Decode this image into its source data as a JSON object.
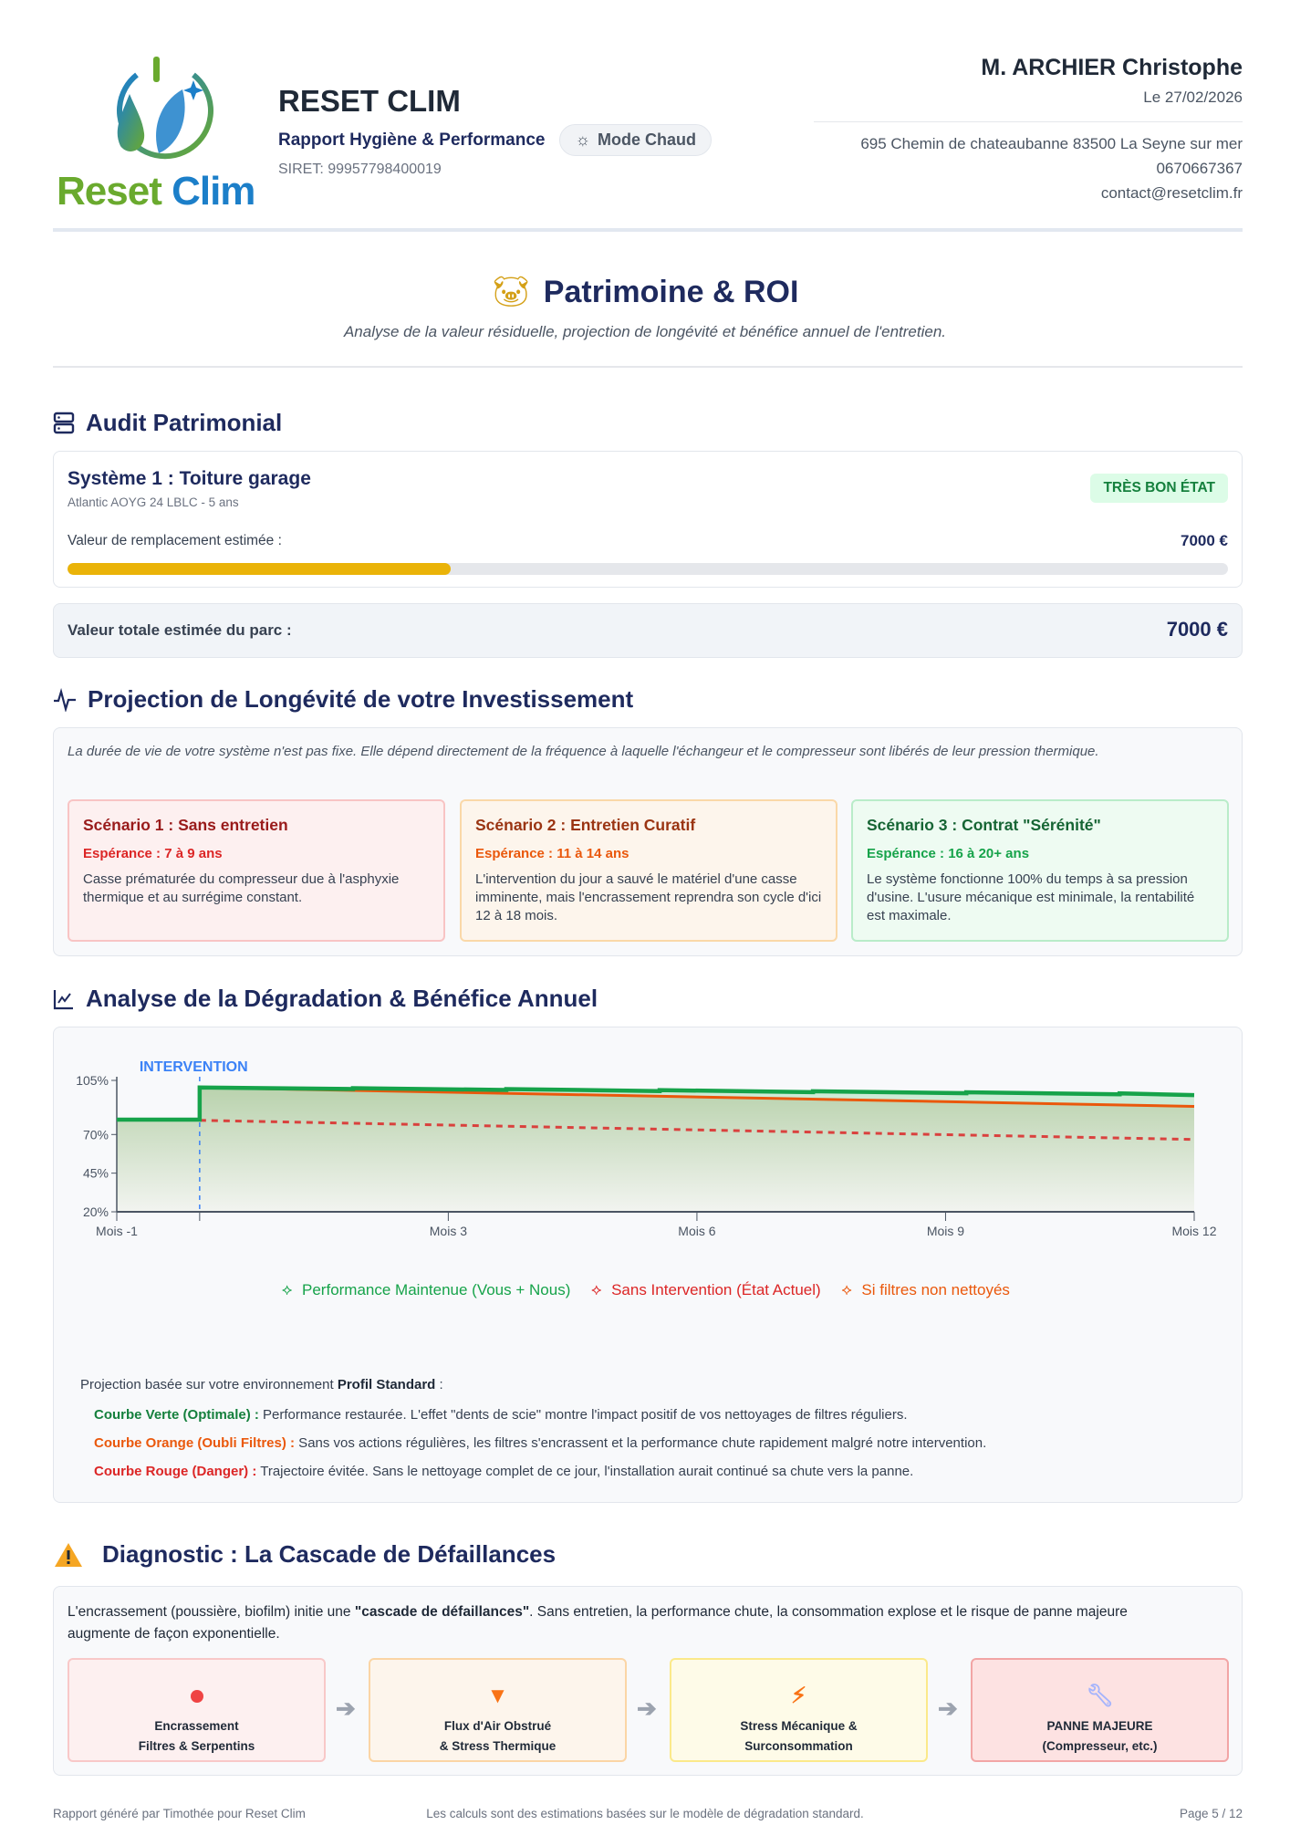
{
  "header": {
    "logo_text_a": "Reset",
    "logo_text_b": "Clim",
    "company": "RESET CLIM",
    "report_type": "Rapport Hygiène & Performance",
    "mode_badge": "Mode Chaud",
    "siret": "SIRET: 99957798400019",
    "client_name": "M. ARCHIER Christophe",
    "date": "Le 27/02/2026",
    "address": "695 Chemin de chateaubanne 83500 La Seyne sur mer",
    "phone": "0670667367",
    "email": "contact@resetclim.fr"
  },
  "page": {
    "title": "Patrimoine & ROI",
    "subtitle": "Analyse de la valeur résiduelle, projection de longévité et bénéfice annuel de l'entretien."
  },
  "audit": {
    "heading": "Audit Patrimonial",
    "system_title": "Système 1 : Toiture garage",
    "system_sub": "Atlantic AOYG 24 LBLC - 5 ans",
    "status_badge": "TRÈS BON ÉTAT",
    "value_label": "Valeur de remplacement estimée :",
    "value": "7000 €",
    "progress_percent": 33,
    "total_label": "Valeur totale estimée du parc :",
    "total_value": "7000 €"
  },
  "projection": {
    "heading": "Projection de Longévité de votre Investissement",
    "intro": "La durée de vie de votre système n'est pas fixe. Elle dépend directement de la fréquence à laquelle l'échangeur et le compresseur sont libérés de leur pression thermique.",
    "scenarios": [
      {
        "title": "Scénario 1 : Sans entretien",
        "expectancy": "Espérance : 7 à 9 ans",
        "desc": "Casse prématurée du compresseur due à l'asphyxie thermique et au surrégime constant."
      },
      {
        "title": "Scénario 2 : Entretien Curatif",
        "expectancy": "Espérance : 11 à 14 ans",
        "desc": "L'intervention du jour a sauvé le matériel d'une casse imminente, mais l'encrassement reprendra son cycle d'ici 12 à 18 mois."
      },
      {
        "title": "Scénario 3 : Contrat \"Sérénité\"",
        "expectancy": "Espérance : 16 à 20+ ans",
        "desc": "Le système fonctionne 100% du temps à sa pression d'usine. L'usure mécanique est minimale, la rentabilité est maximale."
      }
    ]
  },
  "analysis": {
    "heading": "Analyse de la Dégradation & Bénéfice Annuel",
    "notes_intro": "Projection basée sur votre environnement ",
    "notes_profile": "Profil Standard",
    "notes_colon": " :",
    "notes": [
      {
        "label": "Courbe Verte (Optimale) :",
        "text": " Performance restaurée. L'effet \"dents de scie\" montre l'impact positif de vos nettoyages de filtres réguliers."
      },
      {
        "label": "Courbe Orange (Oubli Filtres) :",
        "text": " Sans vos actions régulières, les filtres s'encrassent et la performance chute rapidement malgré notre intervention."
      },
      {
        "label": "Courbe Rouge (Danger) :",
        "text": " Trajectoire évitée. Sans le nettoyage complet de ce jour, l'installation aurait continué sa chute vers la panne."
      }
    ]
  },
  "chart_data": {
    "type": "line",
    "xlabel": "",
    "ylabel": "",
    "xlim": [
      -1,
      12
    ],
    "ylim": [
      20,
      105
    ],
    "x_ticks": [
      {
        "v": -1,
        "label": "Mois -1"
      },
      {
        "v": 0,
        "label": ""
      },
      {
        "v": 3,
        "label": "Mois 3"
      },
      {
        "v": 6,
        "label": "Mois 6"
      },
      {
        "v": 9,
        "label": "Mois 9"
      },
      {
        "v": 12,
        "label": "Mois 12"
      }
    ],
    "y_ticks": [
      {
        "v": 105,
        "label": "105%"
      },
      {
        "v": 70,
        "label": "70%"
      },
      {
        "v": 45,
        "label": "45%"
      },
      {
        "v": 20,
        "label": "20%"
      }
    ],
    "annotation": {
      "x": 0,
      "label": "INTERVENTION"
    },
    "legend_position": "bottom",
    "series": [
      {
        "name": "Performance Maintenue (Vous + Nous)",
        "color": "#16a34a",
        "points": [
          [
            -1,
            79.6
          ],
          [
            0,
            79.6
          ],
          [
            0,
            100.4
          ],
          [
            1.85,
            99.4
          ],
          [
            1.85,
            100
          ],
          [
            3.7,
            98.8
          ],
          [
            3.7,
            99.4
          ],
          [
            5.55,
            98.1
          ],
          [
            5.55,
            98.7
          ],
          [
            7.4,
            97.4
          ],
          [
            7.4,
            98
          ],
          [
            9.25,
            96.7
          ],
          [
            9.25,
            97.3
          ],
          [
            11.1,
            96
          ],
          [
            11.1,
            96.6
          ],
          [
            12,
            95.5
          ]
        ]
      },
      {
        "name": "Sans Intervention (État Actuel)",
        "color": "#dc2626",
        "dashed": true,
        "points": [
          [
            0,
            79.2
          ],
          [
            12,
            66.8
          ]
        ]
      },
      {
        "name": "Si filtres non nettoyés",
        "color": "#ea580c",
        "points": [
          [
            0,
            100.4
          ],
          [
            12,
            88.2
          ]
        ]
      }
    ]
  },
  "diagnostic": {
    "heading": "Diagnostic : La Cascade de Défaillances",
    "intro_a": "L'encrassement (poussière, biofilm) initie une ",
    "intro_bold": "\"cascade de défaillances\"",
    "intro_b": ". Sans entretien, la performance chute, la consommation explose et le risque de panne majeure augmente de façon exponentielle.",
    "steps": [
      {
        "line1": "Encrassement",
        "line2": "Filtres & Serpentins"
      },
      {
        "line1": "Flux d'Air Obstrué",
        "line2": "& Stress Thermique"
      },
      {
        "line1": "Stress Mécanique &",
        "line2": "Surconsommation"
      },
      {
        "line1": "PANNE MAJEURE",
        "line2": "(Compresseur, etc.)"
      }
    ]
  },
  "footer": {
    "left": "Rapport généré par Timothée pour Reset Clim",
    "center": "Les calculs sont des estimations basées sur le modèle de dégradation standard.",
    "right": "Page 5 / 12"
  }
}
